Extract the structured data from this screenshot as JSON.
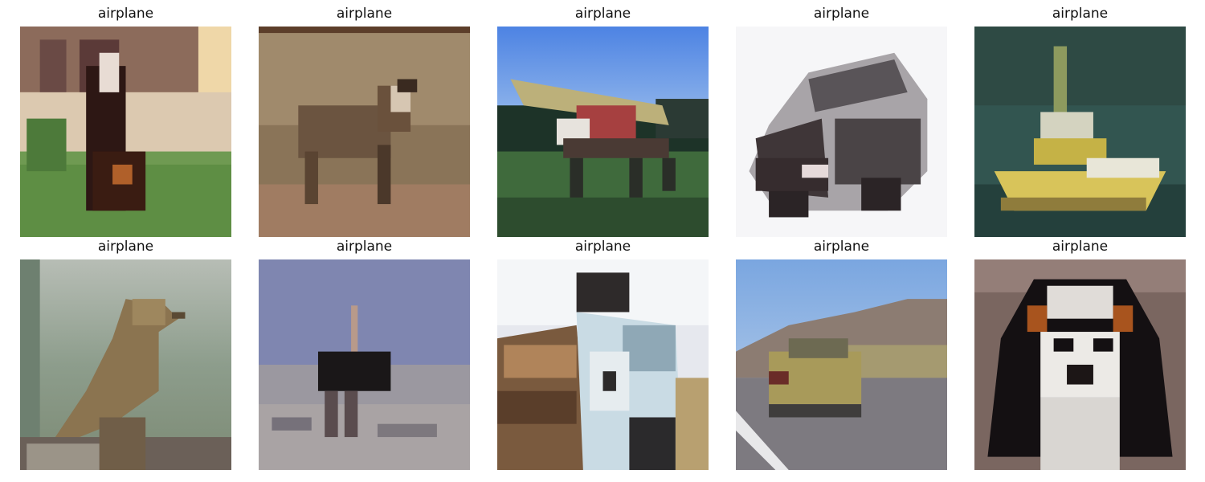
{
  "grid": {
    "rows": 2,
    "cols": 5,
    "items": [
      {
        "label": "airplane",
        "subject": "dog-on-lawn-icon"
      },
      {
        "label": "airplane",
        "subject": "deer-icon"
      },
      {
        "label": "airplane",
        "subject": "airplane-icon"
      },
      {
        "label": "airplane",
        "subject": "car-icon"
      },
      {
        "label": "airplane",
        "subject": "boat-icon"
      },
      {
        "label": "airplane",
        "subject": "bird-icon"
      },
      {
        "label": "airplane",
        "subject": "ostrich-icon"
      },
      {
        "label": "airplane",
        "subject": "truck-icon"
      },
      {
        "label": "airplane",
        "subject": "car-on-road-icon"
      },
      {
        "label": "airplane",
        "subject": "dog-portrait-icon"
      }
    ]
  }
}
